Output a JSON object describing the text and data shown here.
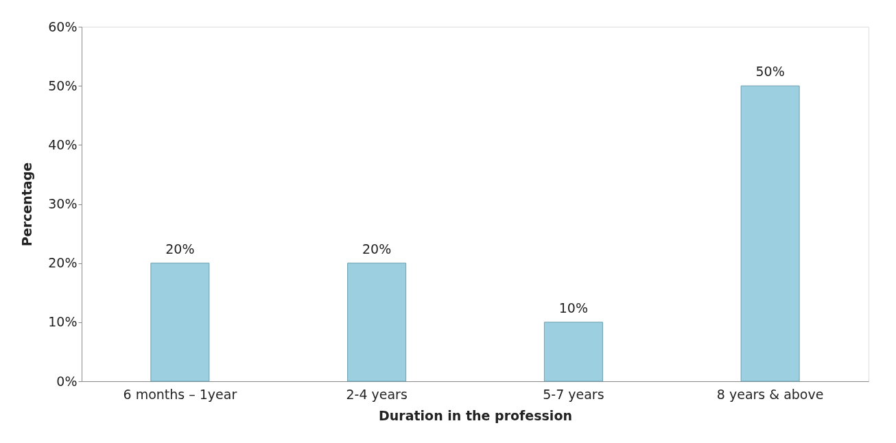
{
  "chart_data": {
    "type": "bar",
    "xlabel": "Duration  in the profession",
    "ylabel": "Percentage",
    "categories": [
      "6 months – 1year",
      "2-4 years",
      "5-7 years",
      "8 years & above"
    ],
    "values": [
      20,
      20,
      10,
      50
    ],
    "color": "#9ccfe0",
    "value_labels": [
      "20%",
      "20%",
      "10%",
      "50%"
    ],
    "ylim": [
      0,
      60
    ],
    "yticks": [
      {
        "value": 0,
        "label": "0%"
      },
      {
        "value": 10,
        "label": "10%"
      },
      {
        "value": 20,
        "label": "20%"
      },
      {
        "value": 30,
        "label": "30%"
      },
      {
        "value": 40,
        "label": "40%"
      },
      {
        "value": 50,
        "label": "50%"
      },
      {
        "value": 60,
        "label": "60%"
      }
    ],
    "grid": false
  }
}
